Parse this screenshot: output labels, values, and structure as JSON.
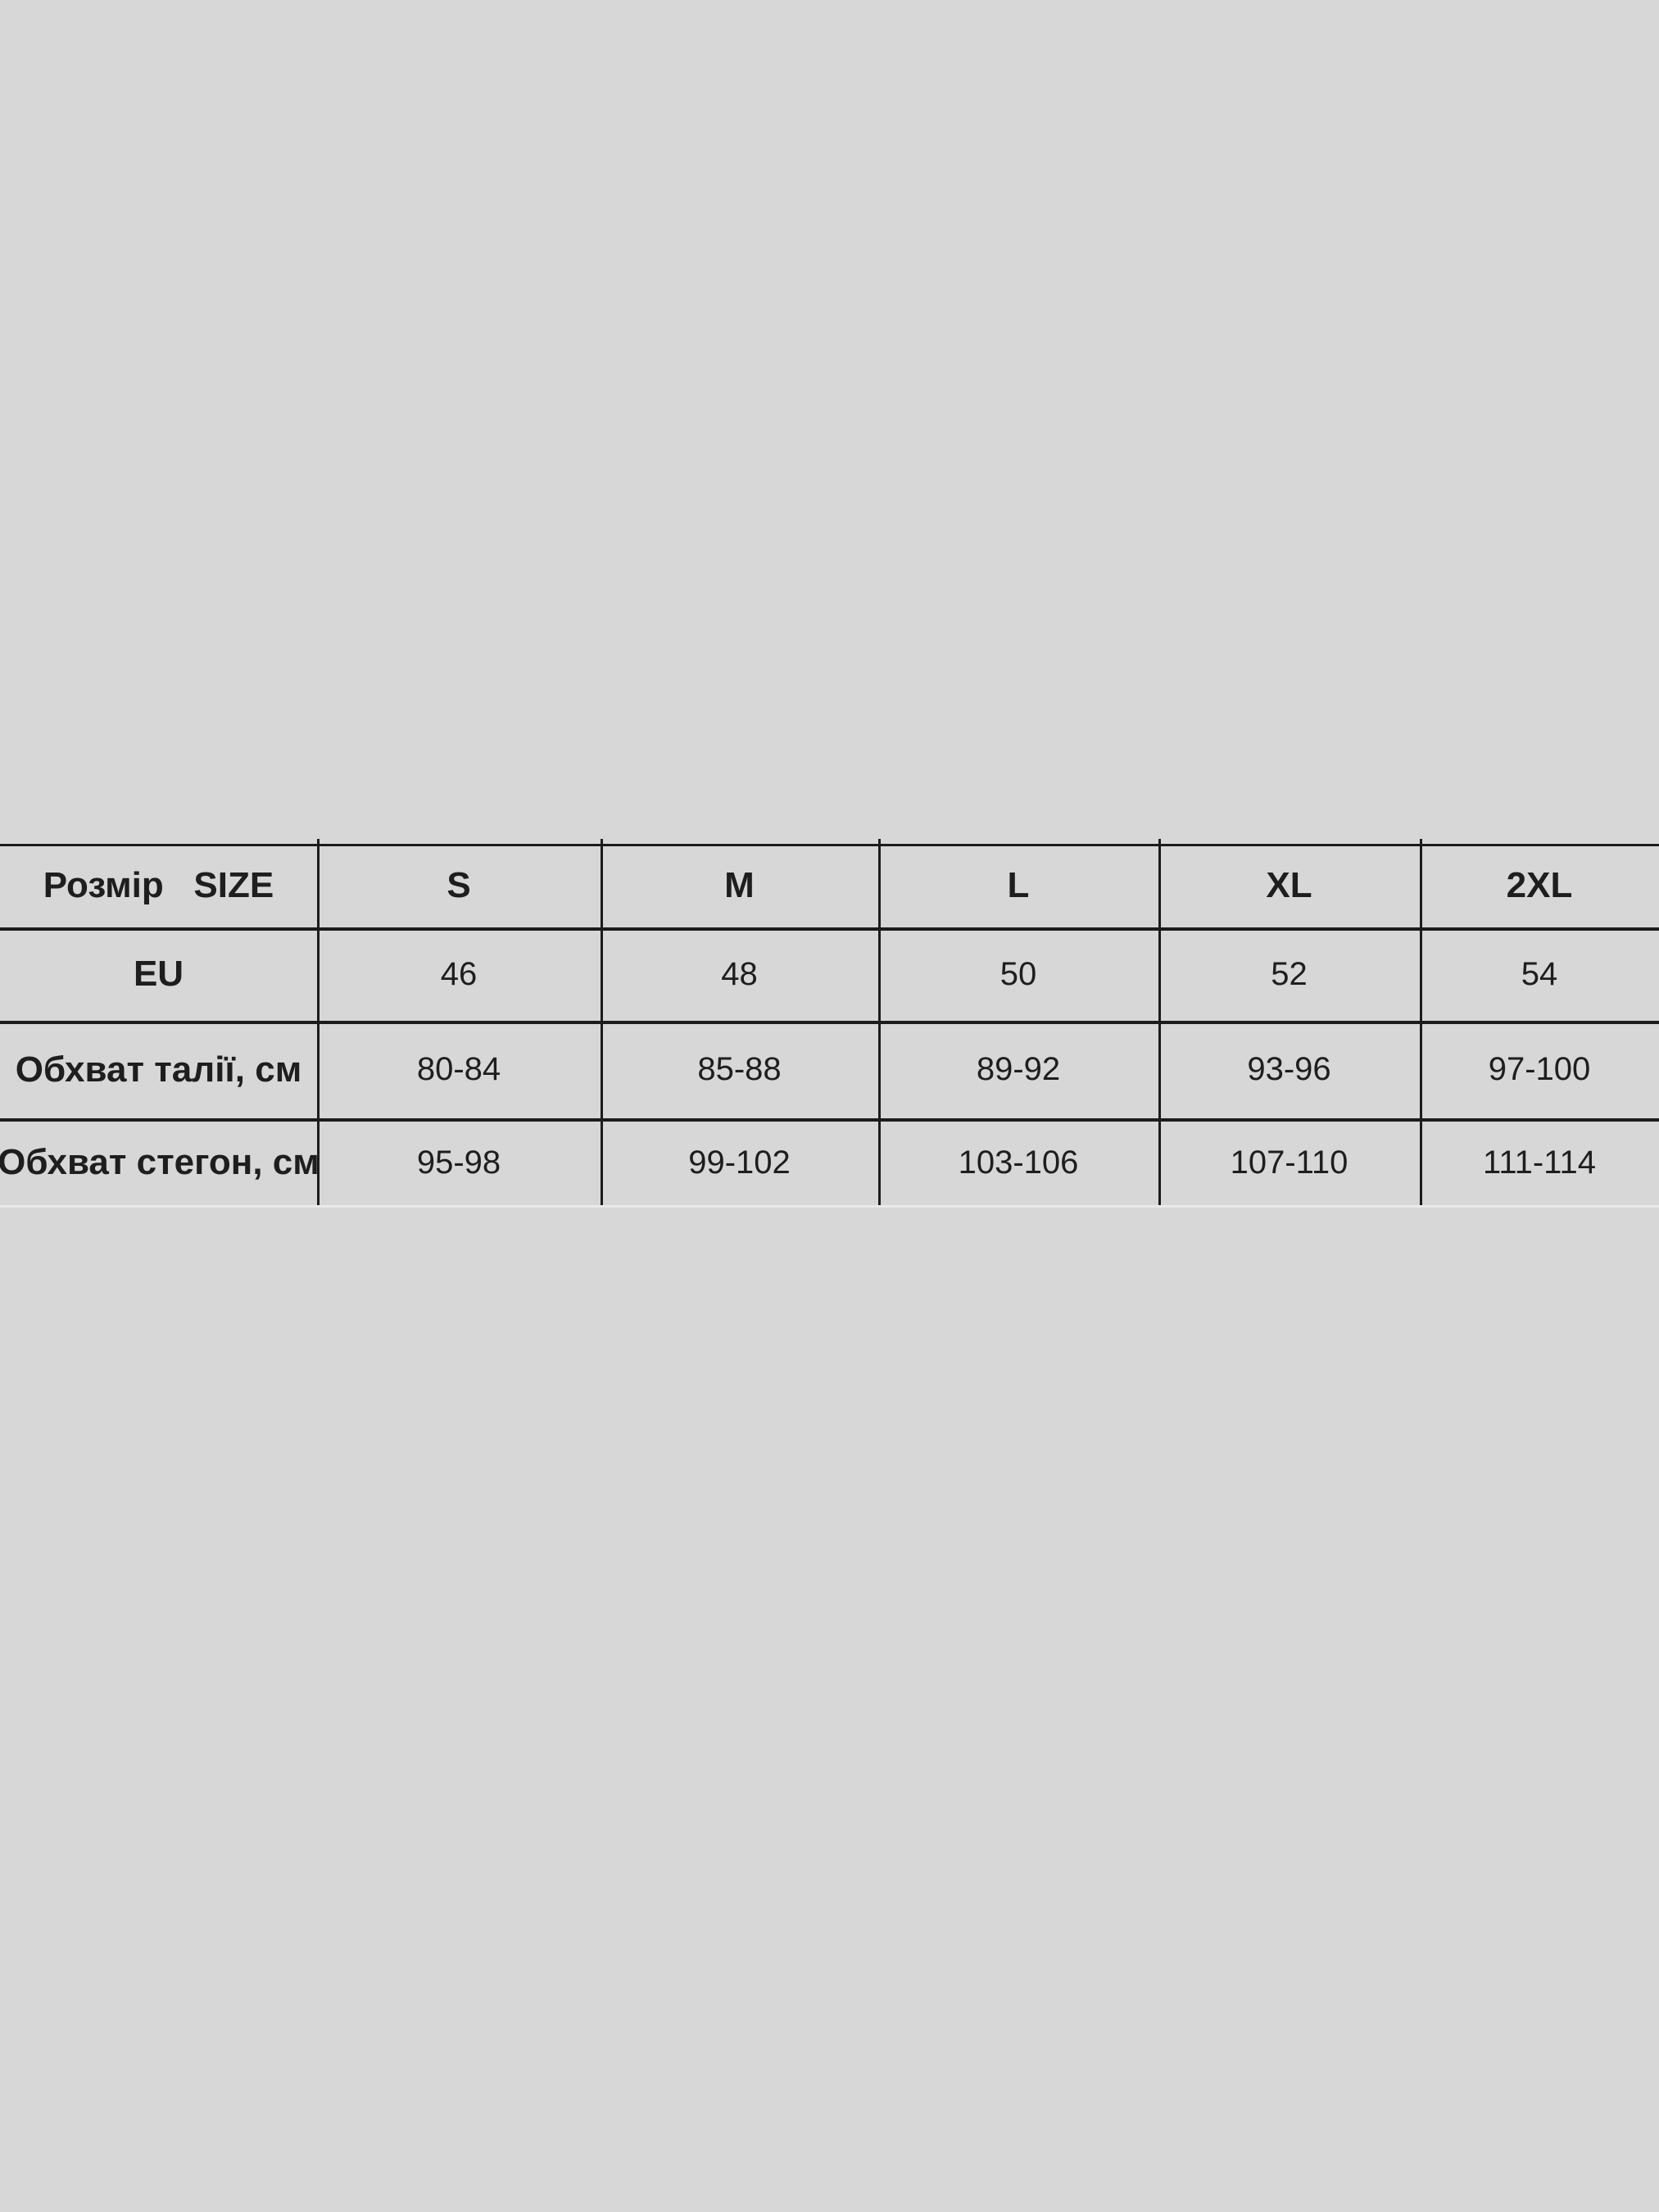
{
  "size_chart": {
    "header": {
      "label": "Розмір   SIZE",
      "sizes": [
        "S",
        "M",
        "L",
        "XL",
        "2XL"
      ]
    },
    "rows": [
      {
        "label": "EU",
        "values": [
          "46",
          "48",
          "50",
          "52",
          "54"
        ]
      },
      {
        "label": "Обхват талії, см",
        "values": [
          "80-84",
          "85-88",
          "89-92",
          "93-96",
          "97-100"
        ]
      },
      {
        "label": "Обхват стегон, см",
        "values": [
          "95-98",
          "99-102",
          "103-106",
          "107-110",
          "111-114"
        ]
      }
    ]
  }
}
